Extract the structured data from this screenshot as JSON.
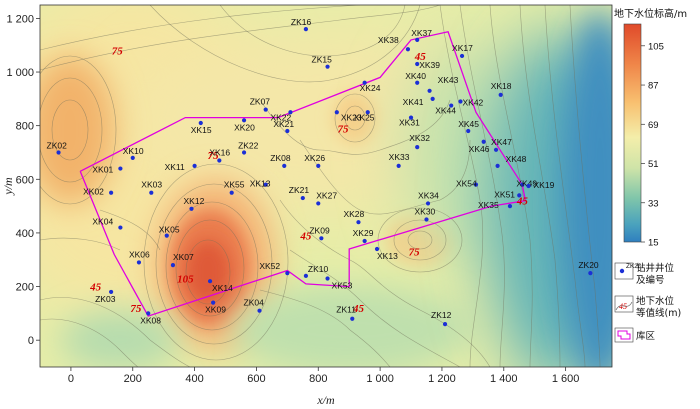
{
  "chart_data": {
    "type": "contour-map",
    "xlabel": "x/m",
    "ylabel": "y/m",
    "xlim": [
      -100,
      1750
    ],
    "ylim": [
      -100,
      1250
    ],
    "x_ticks": [
      "0",
      "200",
      "400",
      "600",
      "800",
      "1 000",
      "1 200",
      "1 400",
      "1 600"
    ],
    "x_tick_values": [
      0,
      200,
      400,
      600,
      800,
      1000,
      1200,
      1400,
      1600
    ],
    "y_ticks": [
      "0",
      "200",
      "400",
      "600",
      "800",
      "1 000",
      "1 200"
    ],
    "y_tick_values": [
      0,
      200,
      400,
      600,
      800,
      1000,
      1200
    ],
    "colorbar": {
      "title": "地下水位标高/m",
      "ticks": [
        "105",
        "87",
        "69",
        "51",
        "33",
        "15"
      ],
      "tick_values": [
        105,
        87,
        69,
        51,
        33,
        15
      ],
      "range": [
        15,
        115
      ]
    },
    "contour_labels": [
      {
        "text": "75",
        "x": 150,
        "y": 1080
      },
      {
        "text": "75",
        "x": 460,
        "y": 690
      },
      {
        "text": "75",
        "x": 880,
        "y": 790
      },
      {
        "text": "45",
        "x": 1130,
        "y": 1060
      },
      {
        "text": "45",
        "x": 760,
        "y": 390
      },
      {
        "text": "75",
        "x": 1110,
        "y": 330
      },
      {
        "text": "45",
        "x": 1460,
        "y": 520
      },
      {
        "text": "105",
        "x": 370,
        "y": 230
      },
      {
        "text": "45",
        "x": 80,
        "y": 200
      },
      {
        "text": "75",
        "x": 210,
        "y": 120
      },
      {
        "text": "45",
        "x": 930,
        "y": 120
      }
    ],
    "wells": [
      {
        "id": "ZK16",
        "x": 760,
        "y": 1160,
        "lx": -15,
        "ly": -4
      },
      {
        "id": "XK37",
        "x": 1120,
        "y": 1120,
        "lx": -6,
        "ly": -4
      },
      {
        "id": "XK38",
        "x": 1090,
        "y": 1085,
        "lx": -30,
        "ly": -6
      },
      {
        "id": "XK17",
        "x": 1265,
        "y": 1060,
        "lx": -10,
        "ly": -5
      },
      {
        "id": "ZK15",
        "x": 830,
        "y": 1020,
        "lx": -16,
        "ly": -4
      },
      {
        "id": "XK39",
        "x": 1120,
        "y": 1030,
        "lx": 2,
        "ly": 4
      },
      {
        "id": "XK40",
        "x": 1120,
        "y": 960,
        "lx": -12,
        "ly": -4
      },
      {
        "id": "XK24",
        "x": 950,
        "y": 960,
        "lx": -5,
        "ly": 8
      },
      {
        "id": "XK18",
        "x": 1390,
        "y": 915,
        "lx": -10,
        "ly": -6
      },
      {
        "id": "XK43",
        "x": 1160,
        "y": 930,
        "lx": 8,
        "ly": -8
      },
      {
        "id": "XK41",
        "x": 1170,
        "y": 900,
        "lx": -30,
        "ly": 6
      },
      {
        "id": "XK42",
        "x": 1260,
        "y": 890,
        "lx": 2,
        "ly": 4
      },
      {
        "id": "XK44",
        "x": 1230,
        "y": 875,
        "lx": -16,
        "ly": 8
      },
      {
        "id": "ZK07",
        "x": 630,
        "y": 860,
        "lx": -16,
        "ly": -5
      },
      {
        "id": "XK22",
        "x": 710,
        "y": 850,
        "lx": -20,
        "ly": 8
      },
      {
        "id": "XK23",
        "x": 860,
        "y": 850,
        "lx": 4,
        "ly": 8
      },
      {
        "id": "XK25",
        "x": 960,
        "y": 850,
        "lx": -14,
        "ly": 8
      },
      {
        "id": "XK15",
        "x": 420,
        "y": 810,
        "lx": -10,
        "ly": 10
      },
      {
        "id": "XK20",
        "x": 560,
        "y": 820,
        "lx": -10,
        "ly": 10
      },
      {
        "id": "XK21",
        "x": 700,
        "y": 780,
        "lx": -14,
        "ly": -4
      },
      {
        "id": "XK31",
        "x": 1100,
        "y": 830,
        "lx": -12,
        "ly": 8
      },
      {
        "id": "XK45",
        "x": 1285,
        "y": 780,
        "lx": -10,
        "ly": -4
      },
      {
        "id": "ZK22",
        "x": 560,
        "y": 700,
        "lx": -6,
        "ly": -4
      },
      {
        "id": "XK32",
        "x": 1120,
        "y": 720,
        "lx": -8,
        "ly": -6
      },
      {
        "id": "XK46",
        "x": 1335,
        "y": 740,
        "lx": -15,
        "ly": 10
      },
      {
        "id": "XK47",
        "x": 1375,
        "y": 710,
        "lx": -5,
        "ly": -5
      },
      {
        "id": "XK10",
        "x": 200,
        "y": 680,
        "lx": -10,
        "ly": -4
      },
      {
        "id": "XK16",
        "x": 480,
        "y": 670,
        "lx": -10,
        "ly": -5
      },
      {
        "id": "ZK02",
        "x": -40,
        "y": 700,
        "lx": -12,
        "ly": -4
      },
      {
        "id": "XK01",
        "x": 160,
        "y": 640,
        "lx": -28,
        "ly": 4
      },
      {
        "id": "XK11",
        "x": 400,
        "y": 650,
        "lx": -30,
        "ly": 4
      },
      {
        "id": "ZK08",
        "x": 690,
        "y": 650,
        "lx": -14,
        "ly": -5
      },
      {
        "id": "XK26",
        "x": 800,
        "y": 650,
        "lx": -14,
        "ly": -5
      },
      {
        "id": "XK33",
        "x": 1060,
        "y": 650,
        "lx": -10,
        "ly": -6
      },
      {
        "id": "XK48",
        "x": 1380,
        "y": 650,
        "lx": 8,
        "ly": -4
      },
      {
        "id": "XK13",
        "x": 630,
        "y": 580,
        "lx": -16,
        "ly": 2
      },
      {
        "id": "XK54",
        "x": 1310,
        "y": 580,
        "lx": -20,
        "ly": 2
      },
      {
        "id": "XK49",
        "x": 1460,
        "y": 580,
        "lx": -6,
        "ly": 2
      },
      {
        "id": "XK19",
        "x": 1480,
        "y": 575,
        "lx": 5,
        "ly": 2
      },
      {
        "id": "XK02",
        "x": 130,
        "y": 550,
        "lx": -28,
        "ly": 2
      },
      {
        "id": "XK03",
        "x": 260,
        "y": 550,
        "lx": -10,
        "ly": -5
      },
      {
        "id": "XK55",
        "x": 520,
        "y": 550,
        "lx": -8,
        "ly": -5
      },
      {
        "id": "XK51",
        "x": 1450,
        "y": 540,
        "lx": -25,
        "ly": 2
      },
      {
        "id": "ZK21",
        "x": 750,
        "y": 530,
        "lx": -14,
        "ly": -5
      },
      {
        "id": "XK27",
        "x": 800,
        "y": 510,
        "lx": -2,
        "ly": -5
      },
      {
        "id": "XK34",
        "x": 1155,
        "y": 510,
        "lx": -10,
        "ly": -5
      },
      {
        "id": "XK35",
        "x": 1420,
        "y": 500,
        "lx": -32,
        "ly": 2
      },
      {
        "id": "XK12",
        "x": 390,
        "y": 490,
        "lx": -8,
        "ly": -5
      },
      {
        "id": "XK28",
        "x": 930,
        "y": 440,
        "lx": -15,
        "ly": -5
      },
      {
        "id": "XK30",
        "x": 1150,
        "y": 450,
        "lx": -12,
        "ly": -5
      },
      {
        "id": "XK04",
        "x": 160,
        "y": 420,
        "lx": -28,
        "ly": -3
      },
      {
        "id": "XK05",
        "x": 310,
        "y": 390,
        "lx": -8,
        "ly": -3
      },
      {
        "id": "ZK09",
        "x": 810,
        "y": 380,
        "lx": -12,
        "ly": -5
      },
      {
        "id": "XK29",
        "x": 950,
        "y": 370,
        "lx": -12,
        "ly": -5
      },
      {
        "id": "XK13",
        "x": 990,
        "y": 340,
        "lx": 0,
        "ly": 10
      },
      {
        "id": "XK06",
        "x": 220,
        "y": 290,
        "lx": -10,
        "ly": -5
      },
      {
        "id": "XK07",
        "x": 330,
        "y": 280,
        "lx": 0,
        "ly": -5
      },
      {
        "id": "XK52",
        "x": 700,
        "y": 250,
        "lx": -28,
        "ly": -4
      },
      {
        "id": "ZK10",
        "x": 760,
        "y": 240,
        "lx": 2,
        "ly": -4
      },
      {
        "id": "XK53",
        "x": 830,
        "y": 230,
        "lx": 4,
        "ly": 10
      },
      {
        "id": "ZK20",
        "x": 1680,
        "y": 250,
        "lx": -12,
        "ly": -5
      },
      {
        "id": "XK14",
        "x": 450,
        "y": 220,
        "lx": 2,
        "ly": 10
      },
      {
        "id": "ZK03",
        "x": 130,
        "y": 180,
        "lx": -16,
        "ly": 10
      },
      {
        "id": "XK09",
        "x": 460,
        "y": 140,
        "lx": -8,
        "ly": 10
      },
      {
        "id": "ZK04",
        "x": 610,
        "y": 110,
        "lx": -16,
        "ly": -5
      },
      {
        "id": "ZK11",
        "x": 910,
        "y": 80,
        "lx": -16,
        "ly": -6
      },
      {
        "id": "XK08",
        "x": 250,
        "y": 100,
        "lx": -8,
        "ly": 10
      },
      {
        "id": "ZK12",
        "x": 1210,
        "y": 60,
        "lx": -14,
        "ly": -6
      }
    ],
    "reservoir_boundary": [
      [
        30,
        630
      ],
      [
        370,
        830
      ],
      [
        670,
        830
      ],
      [
        1000,
        980
      ],
      [
        1100,
        1120
      ],
      [
        1220,
        1150
      ],
      [
        1310,
        850
      ],
      [
        1460,
        580
      ],
      [
        1470,
        520
      ],
      [
        1360,
        500
      ],
      [
        900,
        340
      ],
      [
        900,
        200
      ],
      [
        760,
        210
      ],
      [
        700,
        260
      ],
      [
        250,
        90
      ],
      [
        140,
        320
      ],
      [
        30,
        630
      ]
    ]
  },
  "legend": {
    "well_label_sample": "ZK20",
    "well_text": [
      "钻井井位",
      "及编号"
    ],
    "contour_sample": "45",
    "contour_text": [
      "地下水位",
      "等值线(m)"
    ],
    "reservoir_text": "库区"
  }
}
